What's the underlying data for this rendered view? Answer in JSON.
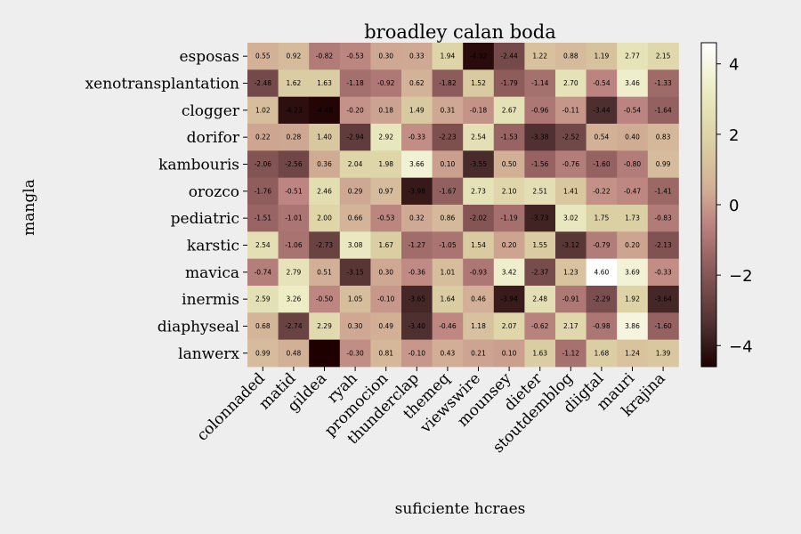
{
  "chart_data": {
    "type": "heatmap",
    "title": "broadley calan boda",
    "xlabel": "suficiente hcraes",
    "ylabel": "mangla",
    "columns": [
      "colonnaded",
      "matid",
      "gildea",
      "ryah",
      "promocion",
      "thunderclap",
      "themeq",
      "viewswire",
      "mounsey",
      "dieter",
      "stoutdemblog",
      "diigtal",
      "mauri",
      "krajina"
    ],
    "rows": [
      "esposas",
      "xenotransplantation",
      "clogger",
      "dorifor",
      "kambouris",
      "orozco",
      "pediatric",
      "karstic",
      "mavica",
      "inermis",
      "diaphyseal",
      "lanwerx"
    ],
    "values": [
      [
        0.55,
        0.92,
        -0.82,
        -0.53,
        0.3,
        0.33,
        1.94,
        -4.32,
        -2.44,
        1.22,
        0.88,
        1.19,
        2.77,
        2.15
      ],
      [
        -2.48,
        1.62,
        1.63,
        -1.18,
        -0.92,
        0.62,
        -1.82,
        1.52,
        -1.79,
        -1.14,
        2.7,
        -0.54,
        3.46,
        -1.33
      ],
      [
        1.02,
        -4.23,
        -4.48,
        -0.2,
        0.18,
        1.49,
        0.31,
        -0.18,
        2.67,
        -0.96,
        -0.11,
        -3.44,
        -0.54,
        -1.64
      ],
      [
        0.22,
        0.28,
        1.4,
        -2.94,
        2.92,
        -0.33,
        -2.23,
        2.54,
        -1.53,
        -3.38,
        -2.52,
        0.54,
        0.4,
        0.83
      ],
      [
        -2.06,
        -2.56,
        0.36,
        2.04,
        1.98,
        3.66,
        0.1,
        -3.55,
        0.5,
        -1.56,
        -0.76,
        -1.6,
        -0.8,
        0.99
      ],
      [
        -1.76,
        -0.51,
        2.46,
        0.29,
        0.97,
        -3.98,
        -1.67,
        2.73,
        2.1,
        2.51,
        1.41,
        -0.22,
        -0.47,
        -1.41
      ],
      [
        -1.51,
        -1.01,
        2.0,
        0.66,
        -0.53,
        0.32,
        0.86,
        -2.02,
        -1.19,
        -3.73,
        3.02,
        1.75,
        1.73,
        -0.83
      ],
      [
        2.54,
        -1.06,
        -2.73,
        3.08,
        1.67,
        -1.27,
        -1.05,
        1.54,
        0.2,
        1.55,
        -3.12,
        -0.79,
        0.2,
        -2.13
      ],
      [
        -0.74,
        2.79,
        0.51,
        -3.15,
        0.3,
        -0.36,
        1.01,
        -0.93,
        3.42,
        -2.37,
        1.23,
        4.6,
        3.69,
        -0.33
      ],
      [
        2.59,
        3.26,
        -0.5,
        1.05,
        -0.1,
        -3.65,
        1.64,
        0.46,
        -3.94,
        2.48,
        -0.91,
        -2.29,
        1.92,
        -3.64
      ],
      [
        0.68,
        -2.74,
        2.29,
        0.3,
        0.49,
        -3.4,
        -0.46,
        1.18,
        2.07,
        -0.62,
        2.17,
        -0.98,
        3.86,
        -1.6
      ],
      [
        0.99,
        0.48,
        null,
        -0.3,
        0.81,
        -0.1,
        0.43,
        0.21,
        0.1,
        1.63,
        -1.12,
        1.68,
        1.24,
        1.39
      ]
    ],
    "value_range": [
      -4.6,
      4.6
    ],
    "colorbar_ticks": [
      "4",
      "2",
      "0",
      "−2",
      "−4"
    ],
    "colormap": "pink",
    "colorbar_position": "right",
    "grid": false
  }
}
